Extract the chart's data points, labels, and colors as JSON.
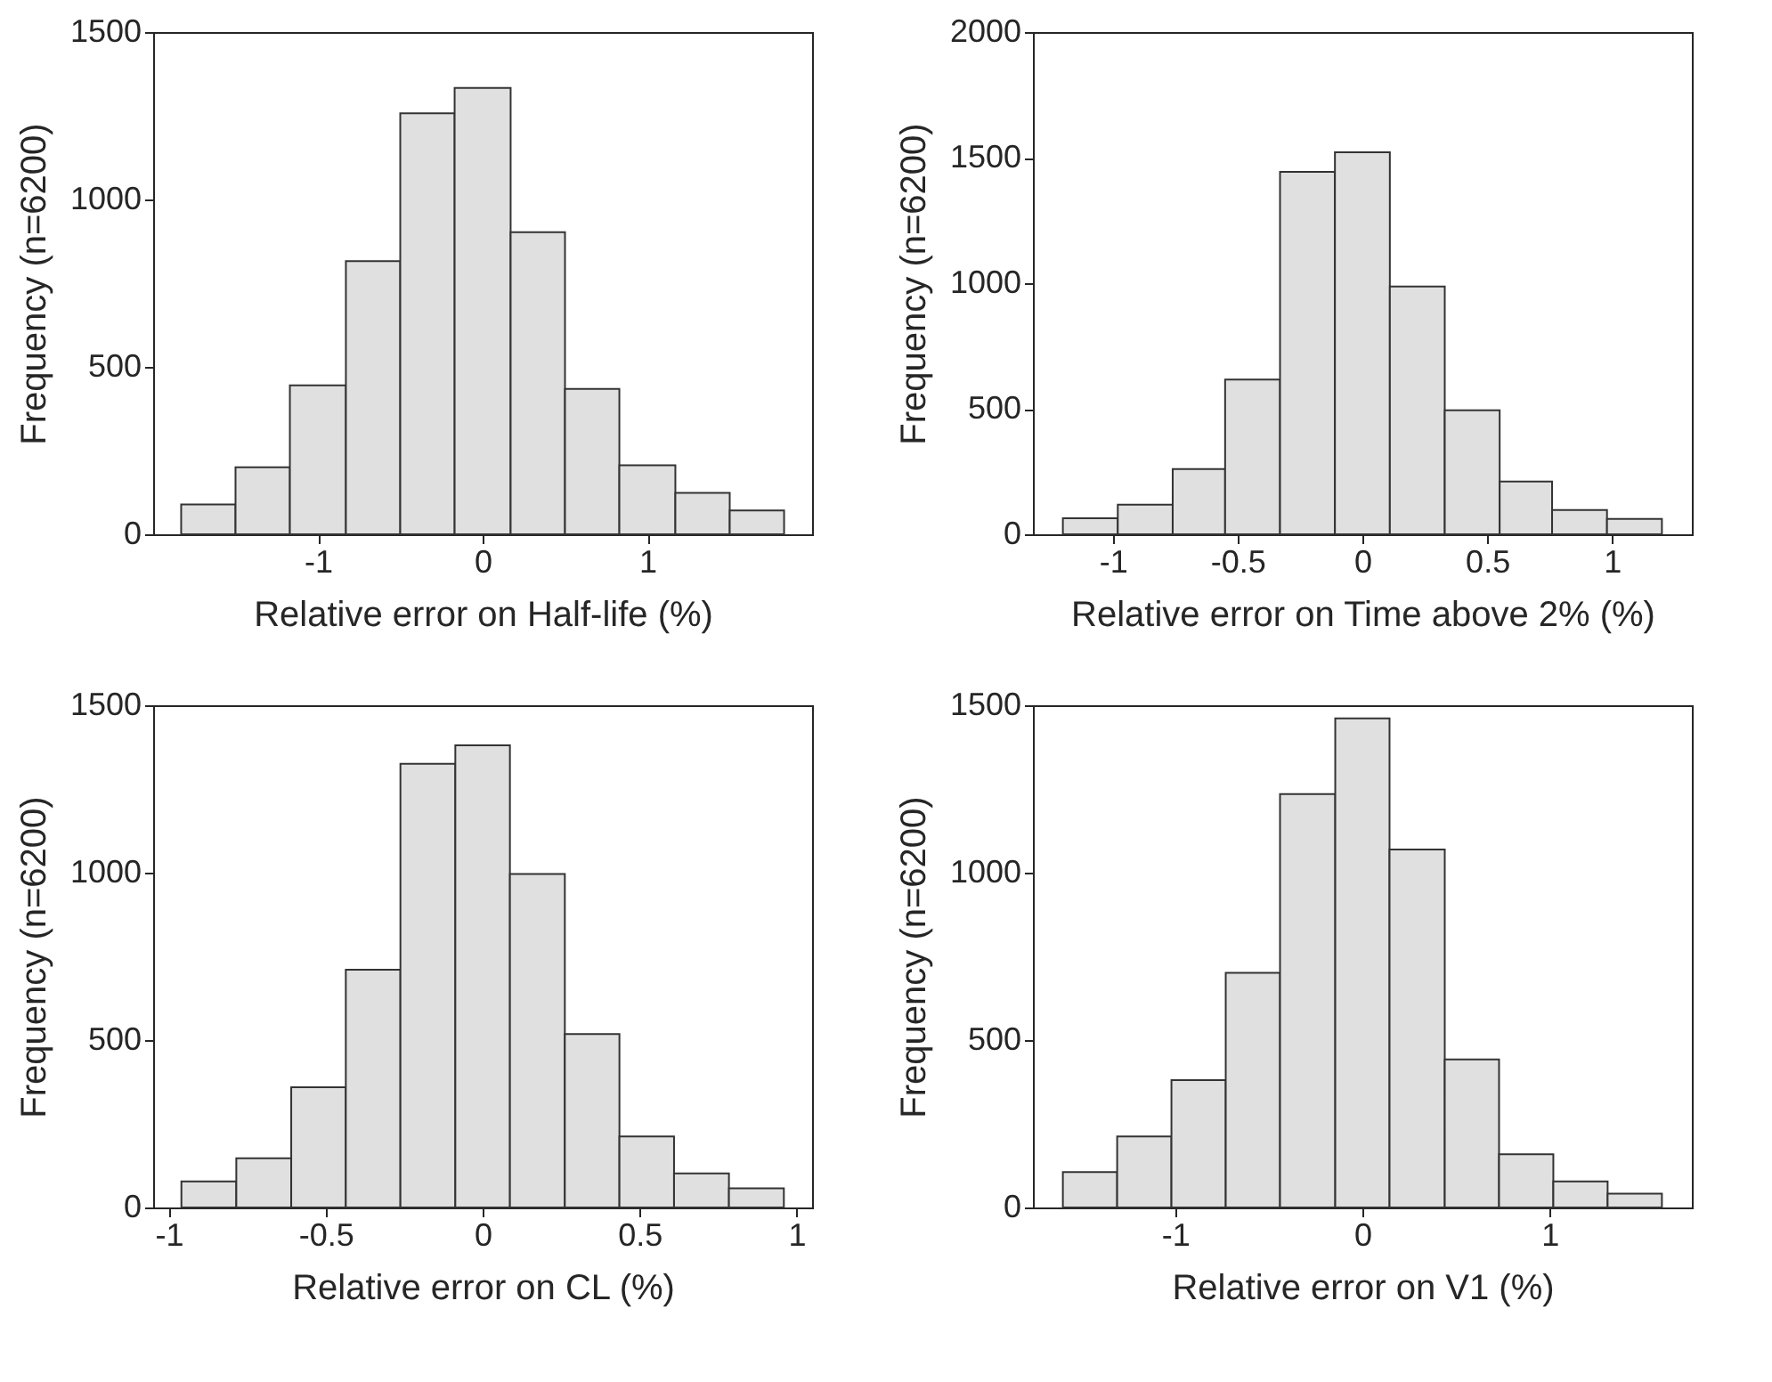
{
  "chart_data": [
    {
      "type": "histogram",
      "xlabel": "Relative error on Half-life (%)",
      "ylabel": "Frequency (n=6200)",
      "color": "#e0e0e0",
      "grid": false,
      "bins": [
        -1.83,
        -1.5,
        -1.17,
        -0.83,
        -0.5,
        -0.17,
        0.17,
        0.5,
        0.83,
        1.17,
        1.5,
        1.83
      ],
      "values": [
        89,
        200,
        445,
        816,
        1257,
        1333,
        902,
        434,
        206,
        124,
        71
      ],
      "xlim": [
        -2,
        2
      ],
      "xticks": [
        -1,
        0,
        1
      ],
      "ylim": [
        0,
        1500
      ],
      "yticks": [
        0,
        500,
        1000,
        1500
      ]
    },
    {
      "type": "histogram",
      "xlabel": "Relative error on Time above 2% (%)",
      "ylabel": "Frequency (n=6200)",
      "color": "#e0e0e0",
      "grid": false,
      "bins": [
        -1.2,
        -0.98,
        -0.76,
        -0.55,
        -0.33,
        -0.11,
        0.11,
        0.33,
        0.55,
        0.76,
        0.98,
        1.2
      ],
      "values": [
        64,
        118,
        260,
        616,
        1443,
        1521,
        987,
        494,
        210,
        97,
        61
      ],
      "xlim": [
        -1.32,
        1.32
      ],
      "xticks": [
        -1,
        -0.5,
        0,
        0.5,
        1
      ],
      "ylim": [
        0,
        2000
      ],
      "yticks": [
        0,
        500,
        1000,
        1500,
        2000
      ]
    },
    {
      "type": "histogram",
      "xlabel": "Relative error on CL (%)",
      "ylabel": "Frequency (n=6200)",
      "color": "#e0e0e0",
      "grid": false,
      "bins": [
        -0.96,
        -0.785,
        -0.61,
        -0.436,
        -0.262,
        -0.087,
        0.087,
        0.262,
        0.436,
        0.61,
        0.785,
        0.96
      ],
      "values": [
        78,
        147,
        359,
        710,
        1325,
        1380,
        996,
        518,
        212,
        102,
        57
      ],
      "xlim": [
        -1.05,
        1.05
      ],
      "xticks": [
        -1,
        -0.5,
        0,
        0.5,
        1
      ],
      "ylim": [
        0,
        1500
      ],
      "yticks": [
        0,
        500,
        1000,
        1500
      ]
    },
    {
      "type": "histogram",
      "xlabel": "Relative error on V1 (%)",
      "ylabel": "Frequency (n=6200)",
      "color": "#e0e0e0",
      "grid": false,
      "bins": [
        -1.6,
        -1.31,
        -1.02,
        -0.73,
        -0.44,
        -0.145,
        0.145,
        0.44,
        0.73,
        1.02,
        1.31,
        1.6
      ],
      "values": [
        106,
        212,
        380,
        701,
        1235,
        1461,
        1069,
        442,
        159,
        78,
        41
      ],
      "xlim": [
        -1.76,
        1.76
      ],
      "xticks": [
        -1,
        0,
        1
      ],
      "ylim": [
        0,
        1500
      ],
      "yticks": [
        0,
        500,
        1000,
        1500
      ]
    }
  ]
}
